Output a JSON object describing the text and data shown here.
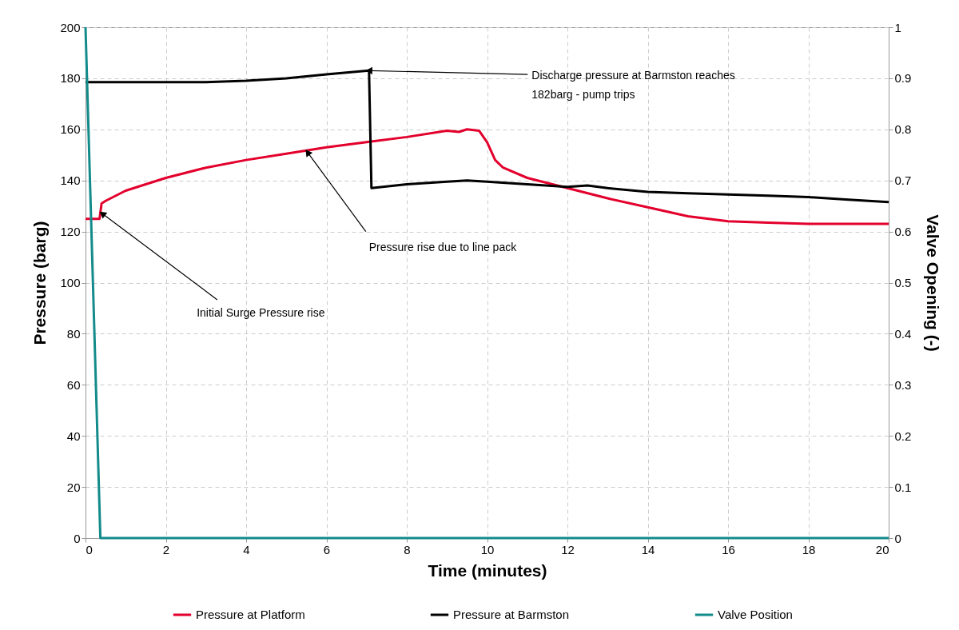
{
  "chart_data": {
    "type": "line",
    "xlabel": "Time (minutes)",
    "ylabel": "Pressure (barg)",
    "y2label": "Valve Opening (-)",
    "xlim": [
      0,
      20
    ],
    "xticks": [
      0,
      2,
      4,
      6,
      8,
      10,
      12,
      14,
      16,
      18,
      20
    ],
    "ylim": [
      0,
      200
    ],
    "yticks": [
      0,
      20,
      40,
      60,
      80,
      100,
      120,
      140,
      160,
      180,
      200
    ],
    "y2lim": [
      0,
      1
    ],
    "y2ticks": [
      0,
      0.1,
      0.2,
      0.3,
      0.4,
      0.5,
      0.6,
      0.7,
      0.8,
      0.9,
      1
    ],
    "grid": true,
    "legend": "bottom",
    "line_style": "solid",
    "marker": "none",
    "series": [
      {
        "name": "Pressure at Platform",
        "color": "#e3002c",
        "x": [
          0,
          0.35,
          0.4,
          0.5,
          1,
          2,
          3,
          4,
          5,
          6,
          7,
          8,
          9,
          9.3,
          9.5,
          9.8,
          10,
          10.2,
          10.4,
          11,
          12,
          13,
          14,
          15,
          16,
          17,
          18,
          20
        ],
        "values": [
          125,
          125,
          131,
          132,
          136,
          141,
          145,
          148,
          150.5,
          153,
          155,
          157,
          159.5,
          159,
          160,
          159.5,
          155,
          148,
          145,
          141,
          137,
          133,
          129.5,
          126,
          124,
          123.5,
          123,
          123
        ]
      },
      {
        "name": "Pressure at Barmston",
        "color": "#000000",
        "x": [
          0,
          3,
          4,
          5,
          6,
          7.06,
          7.12,
          8,
          9,
          9.5,
          10,
          11,
          12,
          12.5,
          13,
          14,
          15,
          16,
          17,
          18,
          19,
          20
        ],
        "values": [
          178.5,
          178.5,
          179,
          180,
          181.5,
          183,
          137,
          138.5,
          139.5,
          140,
          139.5,
          138.5,
          137.5,
          138,
          137,
          135.5,
          135,
          134.5,
          134,
          133.5,
          132.5,
          131.5
        ]
      },
      {
        "name": "Valve Position",
        "color": "#148b8b",
        "axis": "y2",
        "x": [
          0,
          0.37,
          20
        ],
        "values": [
          1,
          0,
          0
        ]
      }
    ],
    "annotations": [
      {
        "text": "Discharge pressure at Barmston reaches\n182barg - pump trips",
        "x": 7.06,
        "y": 183
      },
      {
        "text": "Pressure rise due to line pack",
        "x": 5.53,
        "y": 151
      },
      {
        "text": "Initial Surge Pressure rise",
        "x": 0.42,
        "y": 127
      }
    ]
  }
}
